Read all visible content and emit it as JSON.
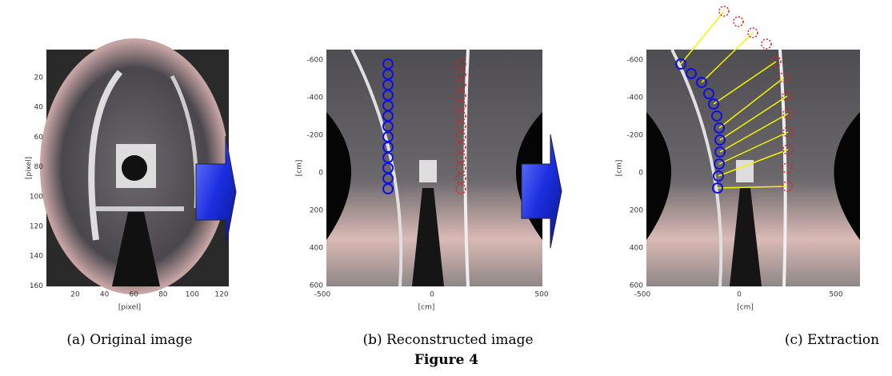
{
  "figure": {
    "title": "Figure 4",
    "panels": [
      {
        "caption": "(a) Original image",
        "x_label": "[pixel]",
        "y_label": "[pixel]",
        "x_ticks": [
          20,
          40,
          60,
          80,
          100,
          120
        ],
        "y_ticks": [
          20,
          40,
          60,
          80,
          100,
          120,
          140,
          160
        ]
      },
      {
        "caption": "(b) Reconstructed image",
        "x_label": "[cm]",
        "y_label": "[cm]",
        "x_ticks": [
          -500,
          0,
          500
        ],
        "y_ticks": [
          -600,
          -400,
          -200,
          0,
          200,
          400,
          600
        ]
      },
      {
        "caption": "(c) Extraction",
        "x_label": "[cm]",
        "y_label": "[cm]",
        "x_ticks": [
          -500,
          0,
          500
        ],
        "y_ticks": [
          -600,
          -400,
          -200,
          0,
          200,
          400,
          600
        ]
      }
    ]
  }
}
